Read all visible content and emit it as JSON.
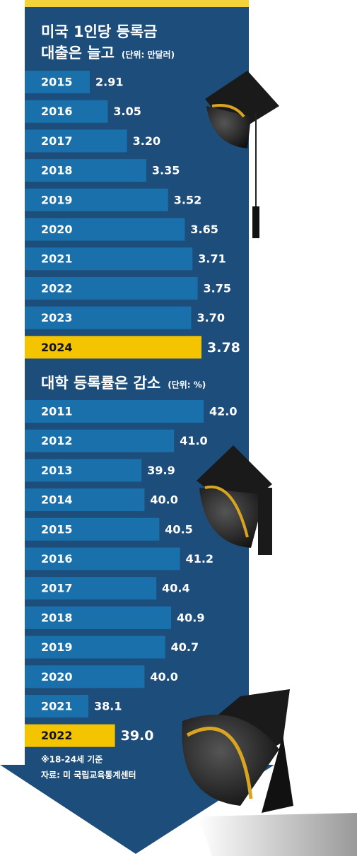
{
  "chart_data": [
    {
      "type": "bar",
      "orientation": "horizontal",
      "title": [
        "미국 1인당 등록금",
        "대출은 늘고"
      ],
      "unit": "(단위: 만달러)",
      "categories": [
        "2015",
        "2016",
        "2017",
        "2018",
        "2019",
        "2020",
        "2021",
        "2022",
        "2023",
        "2024"
      ],
      "values": [
        2.91,
        3.05,
        3.2,
        3.35,
        3.52,
        3.65,
        3.71,
        3.75,
        3.7,
        3.78
      ],
      "value_labels": [
        "2.91",
        "3.05",
        "3.20",
        "3.35",
        "3.52",
        "3.65",
        "3.71",
        "3.75",
        "3.70",
        "3.78"
      ],
      "colors": [
        "#1a70aa",
        "#1a70aa",
        "#1a70aa",
        "#1a70aa",
        "#1a70aa",
        "#1a70aa",
        "#1a70aa",
        "#1a70aa",
        "#1a70aa",
        "#f4c400"
      ]
    },
    {
      "type": "bar",
      "orientation": "horizontal",
      "title": [
        "대학 등록률은 감소"
      ],
      "unit": "(단위: %)",
      "categories": [
        "2011",
        "2012",
        "2013",
        "2014",
        "2015",
        "2016",
        "2017",
        "2018",
        "2019",
        "2020",
        "2021",
        "2022"
      ],
      "values": [
        42.0,
        41.0,
        39.9,
        40.0,
        40.5,
        41.2,
        40.4,
        40.9,
        40.7,
        40.0,
        38.1,
        39.0
      ],
      "value_labels": [
        "42.0",
        "41.0",
        "39.9",
        "40.0",
        "40.5",
        "41.2",
        "40.4",
        "40.9",
        "40.7",
        "40.0",
        "38.1",
        "39.0"
      ],
      "colors": [
        "#1a70aa",
        "#1a70aa",
        "#1a70aa",
        "#1a70aa",
        "#1a70aa",
        "#1a70aa",
        "#1a70aa",
        "#1a70aa",
        "#1a70aa",
        "#1a70aa",
        "#1a70aa",
        "#f4c400"
      ]
    }
  ],
  "notes": [
    "※18-24세 기준",
    "자료: 미 국립교육통계센터"
  ]
}
